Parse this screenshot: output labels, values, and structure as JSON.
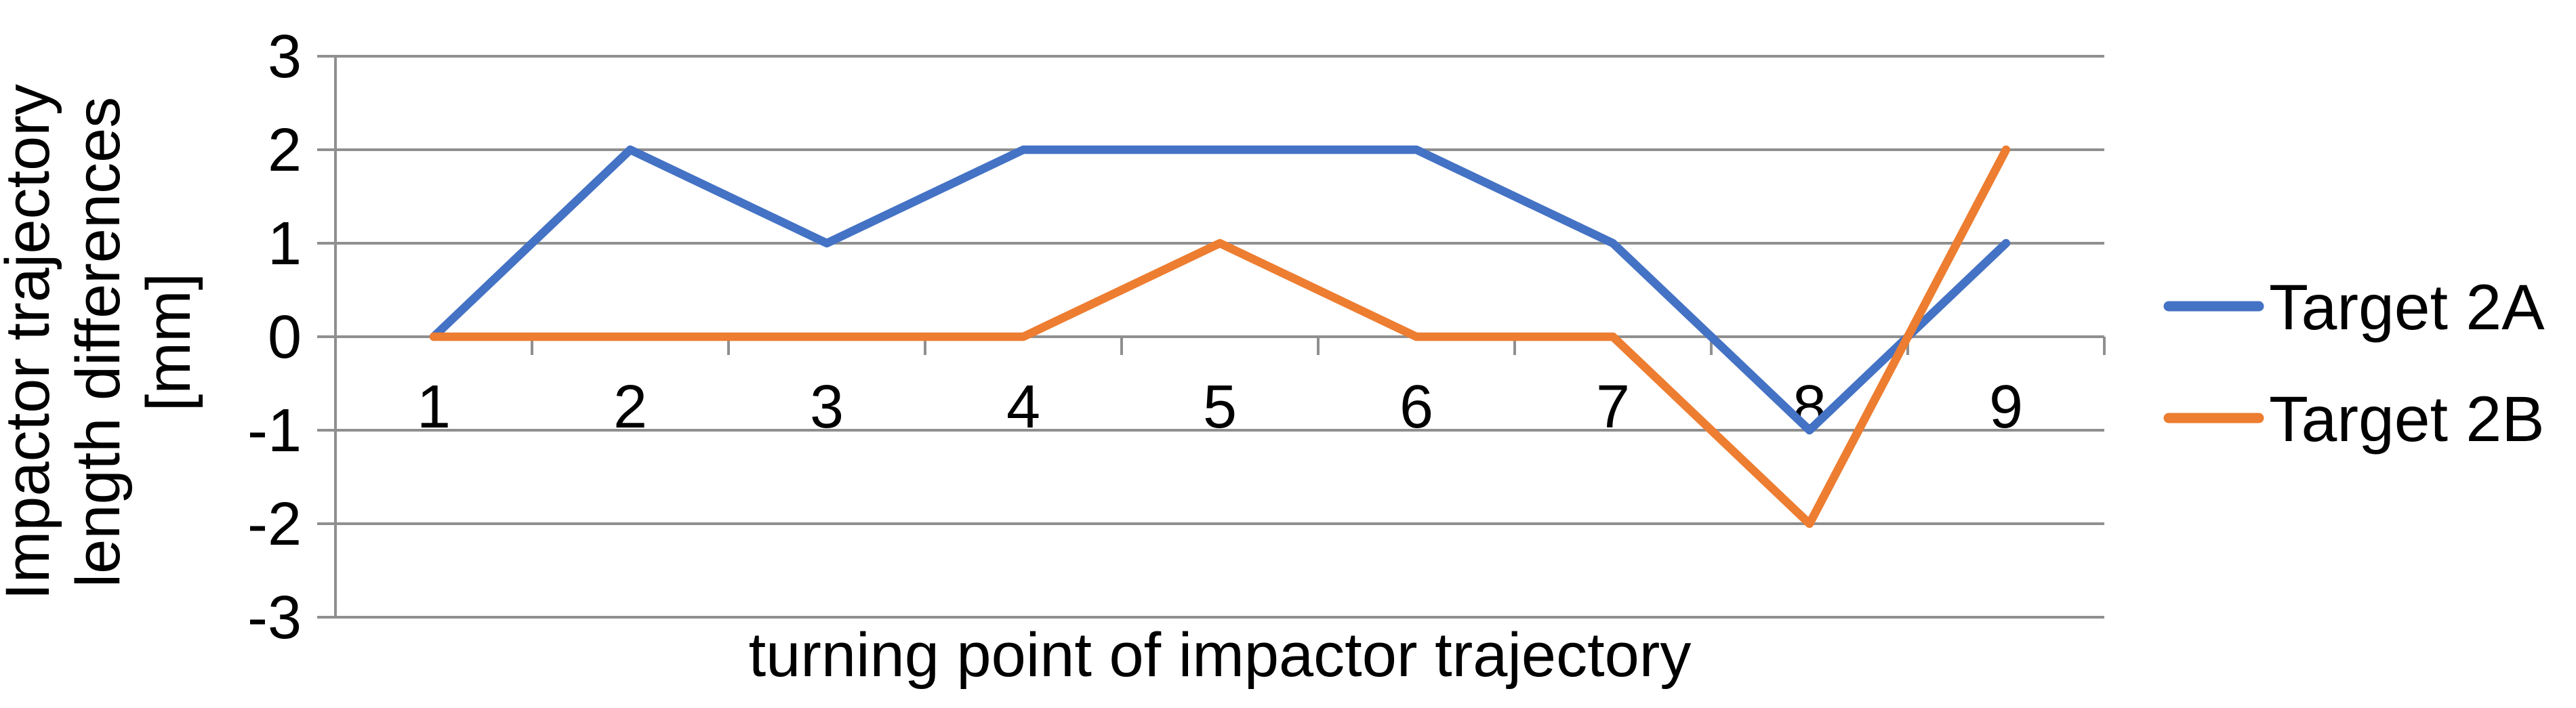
{
  "chart_data": {
    "type": "line",
    "title": "",
    "xlabel": "turning point of impactor trajectory",
    "ylabel": "Impactor trajectory length differences [mm]",
    "ylabel_lines": [
      "Impactor trajectory",
      "length differences",
      "[mm]"
    ],
    "categories": [
      "1",
      "2",
      "3",
      "4",
      "5",
      "6",
      "7",
      "8",
      "9"
    ],
    "y_ticks": [
      3,
      2,
      1,
      0,
      -1,
      -2,
      -3
    ],
    "ylim": [
      -3,
      3
    ],
    "grid": true,
    "legend_position": "right",
    "series": [
      {
        "name": "Target 2A",
        "color": "#4472C4",
        "values": [
          0,
          2,
          1,
          2,
          2,
          2,
          1,
          -1,
          1
        ]
      },
      {
        "name": "Target 2B",
        "color": "#ED7D31",
        "values": [
          0,
          0,
          0,
          0,
          1,
          0,
          0,
          -2,
          2
        ]
      }
    ]
  },
  "colors": {
    "gridline": "#8f8f8f",
    "axis": "#8f8f8f",
    "text": "#000000",
    "background": "#ffffff"
  }
}
